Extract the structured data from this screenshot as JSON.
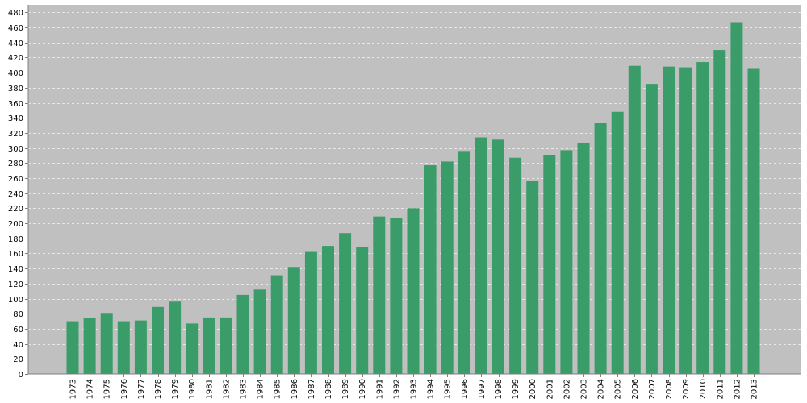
{
  "chart_data": {
    "type": "bar",
    "title": "",
    "xlabel": "",
    "ylabel": "",
    "categories": [
      "1973",
      "1974",
      "1975",
      "1976",
      "1977",
      "1978",
      "1979",
      "1980",
      "1981",
      "1982",
      "1983",
      "1984",
      "1985",
      "1986",
      "1987",
      "1988",
      "1989",
      "1990",
      "1991",
      "1992",
      "1993",
      "1994",
      "1995",
      "1996",
      "1997",
      "1998",
      "1999",
      "2000",
      "2001",
      "2002",
      "2003",
      "2004",
      "2005",
      "2006",
      "2007",
      "2008",
      "2009",
      "2010",
      "2011",
      "2012",
      "2013"
    ],
    "values": [
      70,
      74,
      81,
      70,
      71,
      89,
      96,
      67,
      75,
      75,
      105,
      112,
      131,
      142,
      162,
      170,
      187,
      168,
      209,
      207,
      220,
      277,
      282,
      296,
      314,
      311,
      287,
      256,
      291,
      297,
      306,
      333,
      348,
      409,
      385,
      408,
      407,
      414,
      430,
      467,
      406
    ],
    "ylim": [
      0,
      490
    ],
    "yticks": [
      0,
      20,
      40,
      60,
      80,
      100,
      120,
      140,
      160,
      180,
      200,
      220,
      240,
      260,
      280,
      300,
      320,
      340,
      360,
      380,
      400,
      420,
      440,
      460,
      480
    ],
    "grid": true,
    "legend": "none",
    "colors": {
      "bar": "#3a9c68",
      "plot_background": "#c0c0c0",
      "gridline": "#e8e8e8",
      "axis": "#808080"
    }
  }
}
